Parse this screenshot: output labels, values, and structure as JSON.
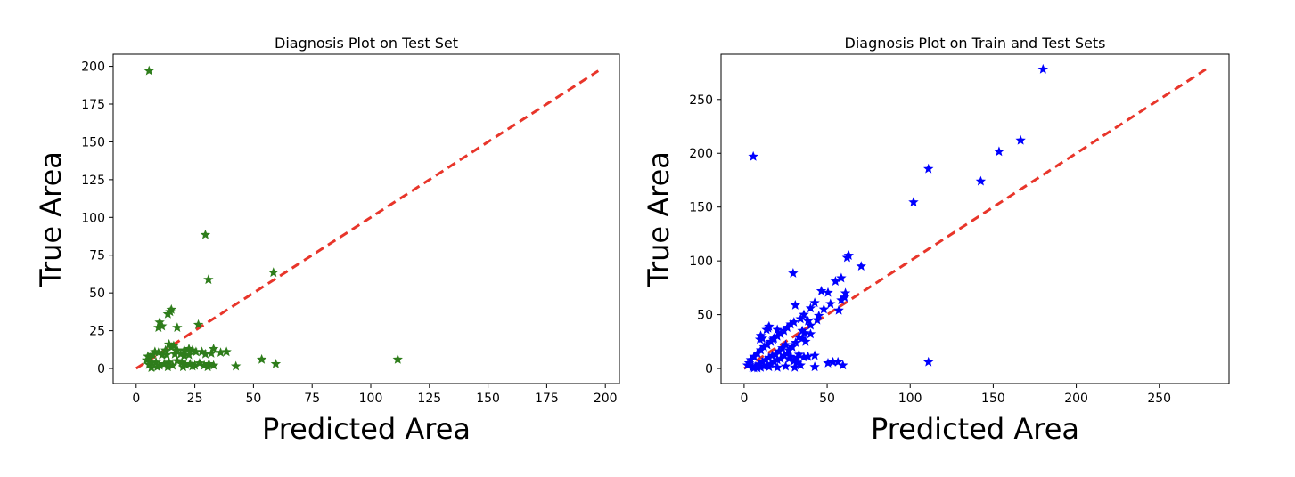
{
  "chart_data": [
    {
      "type": "scatter",
      "title": "Diagnosis Plot on Test Set",
      "xlabel": "Predicted Area",
      "ylabel": "True Area",
      "xlim": [
        -9.8,
        206
      ],
      "ylim": [
        -10,
        208
      ],
      "xticks": [
        0,
        25,
        50,
        75,
        100,
        125,
        150,
        175,
        200
      ],
      "yticks": [
        0,
        25,
        50,
        75,
        100,
        125,
        150,
        175,
        200
      ],
      "marker": "star",
      "marker_color": "#2e7d1b",
      "reference_line": {
        "x": [
          0,
          197
        ],
        "y": [
          0,
          197
        ],
        "style": "dashed",
        "color": "#e8352a"
      },
      "grid": false,
      "points": [
        [
          5.5,
          197
        ],
        [
          29.5,
          88.5
        ],
        [
          30.8,
          58.8
        ],
        [
          58.5,
          63.5
        ],
        [
          111.5,
          6
        ],
        [
          53.5,
          6
        ],
        [
          59.5,
          3
        ],
        [
          42.5,
          1.5
        ],
        [
          38.5,
          11
        ],
        [
          36,
          10.5
        ],
        [
          33,
          13
        ],
        [
          32,
          10
        ],
        [
          29.5,
          9.5
        ],
        [
          28,
          11
        ],
        [
          26.5,
          29
        ],
        [
          14.5,
          37.5
        ],
        [
          15,
          39
        ],
        [
          13.5,
          36
        ],
        [
          10,
          30.5
        ],
        [
          9.5,
          27
        ],
        [
          11,
          28
        ],
        [
          17.5,
          27
        ],
        [
          14,
          16
        ],
        [
          16,
          15
        ],
        [
          15,
          14
        ],
        [
          12.5,
          12
        ],
        [
          17.5,
          12
        ],
        [
          20.5,
          12
        ],
        [
          22.5,
          13
        ],
        [
          24,
          12
        ],
        [
          25.5,
          11
        ],
        [
          19,
          9.5
        ],
        [
          20.5,
          8.5
        ],
        [
          22.5,
          9
        ],
        [
          16.5,
          9.5
        ],
        [
          13,
          9
        ],
        [
          11,
          9
        ],
        [
          9.5,
          10.5
        ],
        [
          8,
          11
        ],
        [
          7,
          9
        ],
        [
          5,
          8
        ],
        [
          6,
          7
        ],
        [
          4.5,
          5.5
        ],
        [
          6.5,
          4
        ],
        [
          5.5,
          2.5
        ],
        [
          8.5,
          4
        ],
        [
          10,
          2
        ],
        [
          12,
          3
        ],
        [
          14,
          4
        ],
        [
          15.5,
          2
        ],
        [
          17.5,
          5
        ],
        [
          19.5,
          4
        ],
        [
          21,
          2.5
        ],
        [
          23,
          3
        ],
        [
          25,
          2
        ],
        [
          27,
          3.5
        ],
        [
          29,
          2
        ],
        [
          31,
          3
        ],
        [
          6.5,
          0.5
        ],
        [
          9,
          1
        ],
        [
          13.5,
          1
        ],
        [
          20,
          1
        ],
        [
          24,
          1.5
        ],
        [
          30.5,
          1
        ],
        [
          33,
          2
        ]
      ]
    },
    {
      "type": "scatter",
      "title": "Diagnosis Plot on Train and Test Sets",
      "xlabel": "Predicted Area",
      "ylabel": "True Area",
      "xlim": [
        -13.9,
        292
      ],
      "ylim": [
        -14,
        292
      ],
      "xticks": [
        0,
        50,
        100,
        150,
        200,
        250
      ],
      "yticks": [
        0,
        50,
        100,
        150,
        200,
        250
      ],
      "marker": "star",
      "marker_color": "#0000ff",
      "reference_line": {
        "x": [
          0,
          278
        ],
        "y": [
          0,
          278
        ],
        "style": "dashed",
        "color": "#e8352a"
      },
      "grid": false,
      "points": [
        [
          180,
          278
        ],
        [
          166.5,
          212
        ],
        [
          153.5,
          201.5
        ],
        [
          111,
          185.5
        ],
        [
          142.5,
          174
        ],
        [
          102,
          154.5
        ],
        [
          5.5,
          197
        ],
        [
          111,
          6
        ],
        [
          63,
          105
        ],
        [
          62,
          103
        ],
        [
          70.5,
          95
        ],
        [
          29.5,
          88.5
        ],
        [
          58.5,
          84
        ],
        [
          55,
          81
        ],
        [
          61,
          70
        ],
        [
          60.5,
          66
        ],
        [
          50.5,
          70.5
        ],
        [
          46.5,
          72
        ],
        [
          42.5,
          61
        ],
        [
          40,
          56
        ],
        [
          57,
          54
        ],
        [
          58.5,
          63.5
        ],
        [
          36,
          50
        ],
        [
          34,
          46
        ],
        [
          30,
          43
        ],
        [
          28,
          41
        ],
        [
          26,
          38
        ],
        [
          24,
          35
        ],
        [
          22,
          32
        ],
        [
          20,
          30
        ],
        [
          18,
          28
        ],
        [
          16,
          25
        ],
        [
          14,
          22
        ],
        [
          12,
          20
        ],
        [
          10,
          17
        ],
        [
          8,
          14
        ],
        [
          6,
          11
        ],
        [
          4,
          8
        ],
        [
          3,
          5
        ],
        [
          2,
          3
        ],
        [
          15,
          39
        ],
        [
          14.5,
          37.5
        ],
        [
          13.5,
          36
        ],
        [
          10,
          30.5
        ],
        [
          9.5,
          27
        ],
        [
          11,
          28
        ],
        [
          17.5,
          27
        ],
        [
          30.8,
          58.8
        ],
        [
          38.5,
          44
        ],
        [
          36.5,
          33
        ],
        [
          35,
          28
        ],
        [
          37,
          25
        ],
        [
          40,
          32
        ],
        [
          42.5,
          12
        ],
        [
          38.5,
          11
        ],
        [
          36,
          10.5
        ],
        [
          33,
          13
        ],
        [
          32,
          10
        ],
        [
          28,
          11
        ],
        [
          26,
          14
        ],
        [
          24,
          12
        ],
        [
          22,
          9
        ],
        [
          20,
          8
        ],
        [
          18,
          6
        ],
        [
          16,
          4
        ],
        [
          14,
          3
        ],
        [
          12,
          2
        ],
        [
          10,
          1
        ],
        [
          8,
          0.5
        ],
        [
          6,
          0.5
        ],
        [
          53.5,
          6
        ],
        [
          50.5,
          5
        ],
        [
          56.5,
          6
        ],
        [
          59.5,
          3
        ],
        [
          42.5,
          1.5
        ],
        [
          30.5,
          1
        ],
        [
          25,
          2
        ],
        [
          20,
          1
        ],
        [
          15,
          1.5
        ],
        [
          29,
          20
        ],
        [
          27,
          17
        ],
        [
          25,
          22
        ],
        [
          23,
          19
        ],
        [
          21,
          16
        ],
        [
          19,
          13
        ],
        [
          17,
          12
        ],
        [
          15,
          10
        ],
        [
          13,
          8
        ],
        [
          11,
          6
        ],
        [
          9,
          4
        ],
        [
          7,
          2
        ],
        [
          5,
          1
        ],
        [
          31,
          24
        ],
        [
          33,
          29
        ],
        [
          35,
          35
        ],
        [
          27,
          9
        ],
        [
          30,
          7
        ],
        [
          32,
          5
        ],
        [
          34,
          3
        ],
        [
          45,
          49
        ],
        [
          48,
          55
        ],
        [
          52,
          60
        ],
        [
          40,
          40
        ],
        [
          44,
          45
        ],
        [
          20,
          36
        ]
      ]
    }
  ]
}
